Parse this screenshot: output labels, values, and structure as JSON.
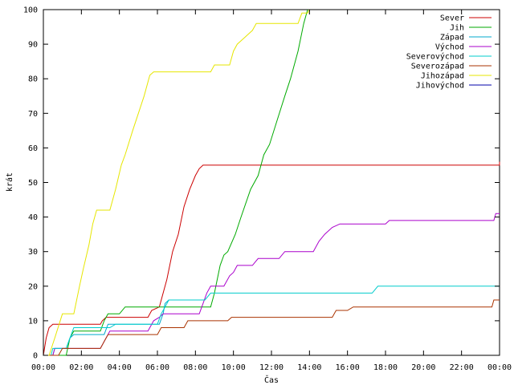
{
  "chart_data": {
    "type": "line",
    "xlabel": "Čas",
    "ylabel": "krát",
    "xlim": [
      0,
      24
    ],
    "ylim": [
      0,
      100
    ],
    "x_ticks": [
      "00:00",
      "02:00",
      "04:00",
      "06:00",
      "08:00",
      "10:00",
      "12:00",
      "14:00",
      "16:00",
      "18:00",
      "20:00",
      "22:00",
      "00:00"
    ],
    "y_ticks": [
      0,
      10,
      20,
      30,
      40,
      50,
      60,
      70,
      80,
      90,
      100
    ],
    "grid": false,
    "legend_position": "top-right",
    "series": [
      {
        "name": "Sever",
        "color": "#cc0000",
        "points": [
          [
            0,
            0
          ],
          [
            0.15,
            5
          ],
          [
            0.3,
            8
          ],
          [
            0.5,
            9
          ],
          [
            3,
            9
          ],
          [
            3.1,
            10
          ],
          [
            3.3,
            11
          ],
          [
            5.5,
            11
          ],
          [
            5.7,
            13
          ],
          [
            6.1,
            14
          ],
          [
            6.5,
            22
          ],
          [
            6.8,
            30
          ],
          [
            7.1,
            35
          ],
          [
            7.4,
            43
          ],
          [
            7.7,
            48
          ],
          [
            8,
            52
          ],
          [
            8.2,
            54
          ],
          [
            8.4,
            55
          ],
          [
            24,
            55
          ],
          [
            24,
            56
          ]
        ]
      },
      {
        "name": "Jih",
        "color": "#00aa00",
        "points": [
          [
            0,
            0
          ],
          [
            1.2,
            0
          ],
          [
            1.4,
            5
          ],
          [
            1.6,
            7
          ],
          [
            3,
            7
          ],
          [
            3.2,
            10
          ],
          [
            3.4,
            12
          ],
          [
            4,
            12
          ],
          [
            4.3,
            14
          ],
          [
            8.8,
            14
          ],
          [
            9,
            18
          ],
          [
            9.3,
            26
          ],
          [
            9.5,
            29
          ],
          [
            9.7,
            30
          ],
          [
            10.1,
            35
          ],
          [
            10.4,
            40
          ],
          [
            10.9,
            48
          ],
          [
            11.3,
            52
          ],
          [
            11.6,
            58
          ],
          [
            11.9,
            61
          ],
          [
            12.3,
            68
          ],
          [
            12.7,
            75
          ],
          [
            13,
            80
          ],
          [
            13.4,
            88
          ],
          [
            13.7,
            96
          ],
          [
            13.9,
            100
          ]
        ]
      },
      {
        "name": "Západ",
        "color": "#00aacc",
        "points": [
          [
            0,
            0
          ],
          [
            0.5,
            0
          ],
          [
            0.6,
            2
          ],
          [
            1.2,
            2
          ],
          [
            1.4,
            5
          ],
          [
            1.6,
            6
          ],
          [
            3.2,
            6
          ],
          [
            3.4,
            9
          ],
          [
            6.1,
            9
          ],
          [
            6.3,
            12
          ],
          [
            6.4,
            15
          ],
          [
            6.6,
            16
          ],
          [
            7.5,
            16
          ]
        ]
      },
      {
        "name": "Východ",
        "color": "#aa00cc",
        "points": [
          [
            0,
            0
          ],
          [
            0.5,
            0
          ],
          [
            0.6,
            2
          ],
          [
            3,
            2
          ],
          [
            3.2,
            4
          ],
          [
            3.5,
            7
          ],
          [
            5.5,
            7
          ],
          [
            5.8,
            10
          ],
          [
            6.1,
            11
          ],
          [
            6.3,
            12
          ],
          [
            8.2,
            12
          ],
          [
            8.4,
            15
          ],
          [
            8.6,
            18
          ],
          [
            8.8,
            20
          ],
          [
            9.5,
            20
          ],
          [
            9.8,
            23
          ],
          [
            10,
            24
          ],
          [
            10.2,
            26
          ],
          [
            11,
            26
          ],
          [
            11.3,
            28
          ],
          [
            12.4,
            28
          ],
          [
            12.7,
            30
          ],
          [
            14.2,
            30
          ],
          [
            14.5,
            33
          ],
          [
            14.8,
            35
          ],
          [
            15.2,
            37
          ],
          [
            15.6,
            38
          ],
          [
            18,
            38
          ],
          [
            18.2,
            39
          ],
          [
            23.7,
            39
          ],
          [
            23.8,
            41
          ],
          [
            24,
            41
          ]
        ]
      },
      {
        "name": "Severovýchod",
        "color": "#00cccc",
        "points": [
          [
            0,
            0
          ],
          [
            0.4,
            0
          ],
          [
            0.5,
            2
          ],
          [
            1.2,
            2
          ],
          [
            1.4,
            5
          ],
          [
            1.6,
            8
          ],
          [
            3.5,
            8
          ],
          [
            3.8,
            9
          ],
          [
            6,
            9
          ],
          [
            6.2,
            12
          ],
          [
            6.4,
            14
          ],
          [
            6.6,
            16
          ],
          [
            8.5,
            16
          ],
          [
            8.8,
            18
          ],
          [
            17.3,
            18
          ],
          [
            17.6,
            20
          ],
          [
            24,
            20
          ]
        ]
      },
      {
        "name": "Severozápad",
        "color": "#aa3300",
        "points": [
          [
            0,
            0
          ],
          [
            0.8,
            0
          ],
          [
            1,
            2
          ],
          [
            3,
            2
          ],
          [
            3.2,
            4
          ],
          [
            3.4,
            6
          ],
          [
            6,
            6
          ],
          [
            6.2,
            8
          ],
          [
            7.4,
            8
          ],
          [
            7.6,
            10
          ],
          [
            9.7,
            10
          ],
          [
            9.9,
            11
          ],
          [
            15.2,
            11
          ],
          [
            15.4,
            13
          ],
          [
            16,
            13
          ],
          [
            16.3,
            14
          ],
          [
            23.6,
            14
          ],
          [
            23.7,
            16
          ],
          [
            24,
            16
          ]
        ]
      },
      {
        "name": "Jihozápad",
        "color": "#e6e600",
        "points": [
          [
            0,
            0
          ],
          [
            0.3,
            0
          ],
          [
            0.6,
            5
          ],
          [
            1,
            12
          ],
          [
            1.6,
            12
          ],
          [
            1.9,
            20
          ],
          [
            2.1,
            25
          ],
          [
            2.4,
            32
          ],
          [
            2.6,
            38
          ],
          [
            2.8,
            42
          ],
          [
            3.5,
            42
          ],
          [
            3.8,
            48
          ],
          [
            4.1,
            55
          ],
          [
            4.3,
            58
          ],
          [
            4.7,
            65
          ],
          [
            5,
            70
          ],
          [
            5.3,
            75
          ],
          [
            5.6,
            81
          ],
          [
            5.8,
            82
          ],
          [
            8.8,
            82
          ],
          [
            9,
            84
          ],
          [
            9.8,
            84
          ],
          [
            10,
            88
          ],
          [
            10.2,
            90
          ],
          [
            10.6,
            92
          ],
          [
            11,
            94
          ],
          [
            11.2,
            96
          ],
          [
            13.4,
            96
          ],
          [
            13.6,
            99
          ],
          [
            13.9,
            99
          ],
          [
            14,
            100
          ]
        ]
      },
      {
        "name": "Jihovýchod",
        "color": "#0000aa",
        "points": []
      }
    ]
  }
}
